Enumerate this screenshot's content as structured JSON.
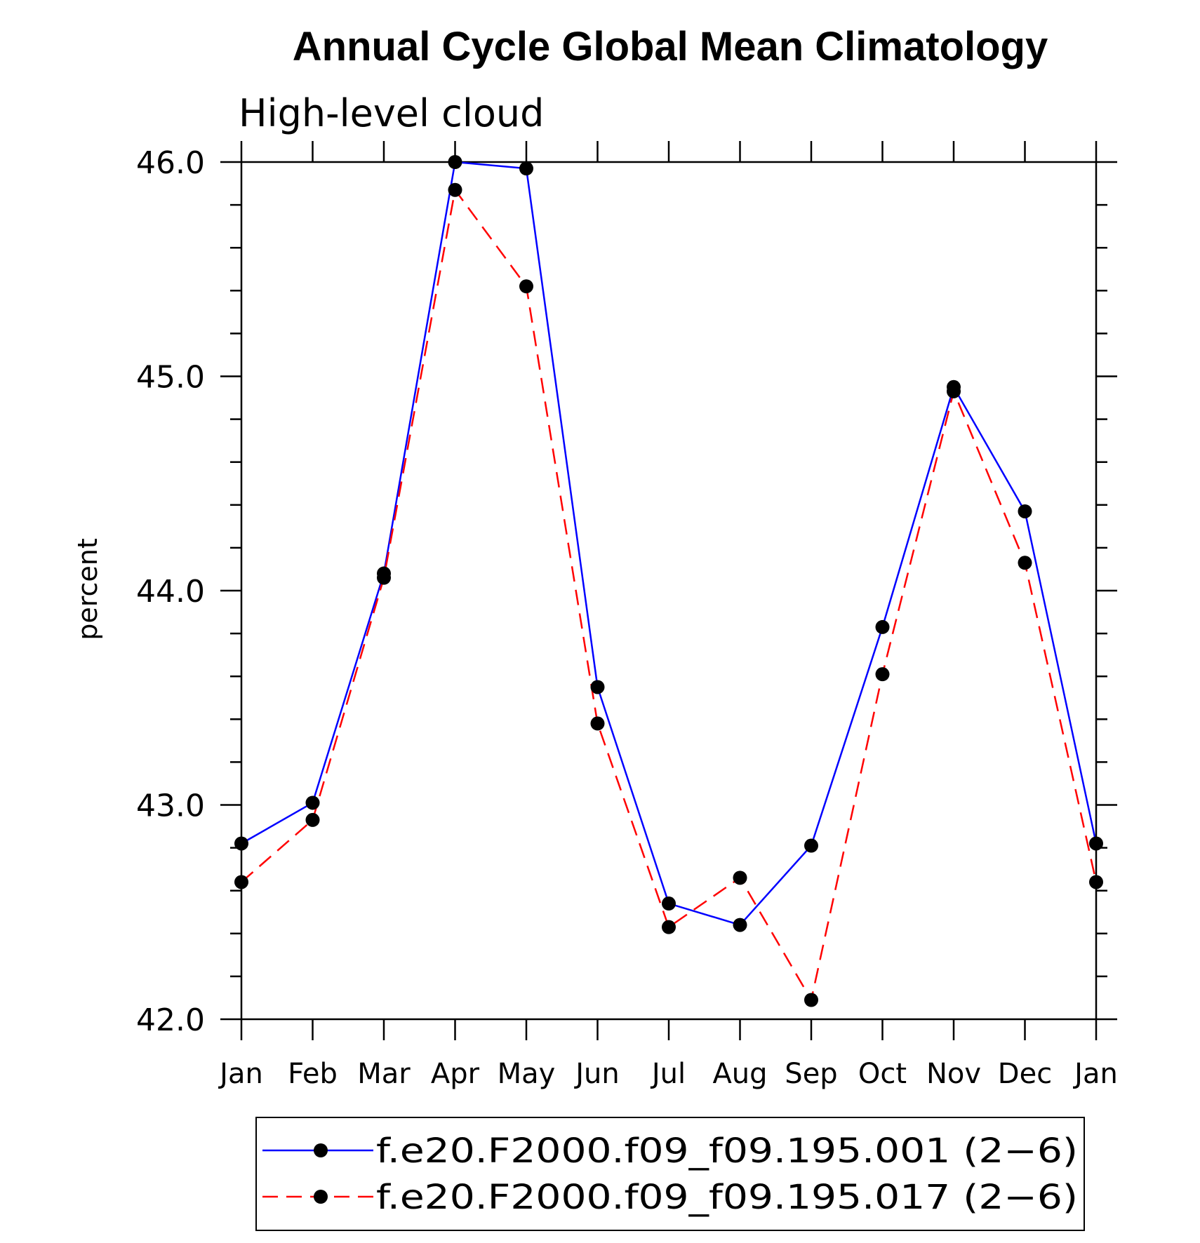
{
  "chart_data": {
    "type": "line",
    "title": "Annual Cycle Global Mean Climatology",
    "subtitle": "High-level cloud",
    "xlabel": "",
    "ylabel": "percent",
    "categories": [
      "Jan",
      "Feb",
      "Mar",
      "Apr",
      "May",
      "Jun",
      "Jul",
      "Aug",
      "Sep",
      "Oct",
      "Nov",
      "Dec",
      "Jan"
    ],
    "ylim": [
      42.0,
      46.0
    ],
    "yticks": [
      "42.0",
      "43.0",
      "44.0",
      "45.0",
      "46.0"
    ],
    "grid": false,
    "legend_position": "bottom",
    "series": [
      {
        "name": "f.e20.F2000.f09_f09.195.001 (2−6)",
        "color": "#0000ff",
        "line_style": "solid",
        "marker": "filled-circle",
        "values": [
          42.82,
          43.01,
          44.08,
          46.0,
          45.97,
          43.55,
          42.54,
          42.44,
          42.81,
          43.83,
          44.95,
          44.37,
          42.82
        ]
      },
      {
        "name": "f.e20.F2000.f09_f09.195.017 (2−6)",
        "color": "#ff0000",
        "line_style": "dashed",
        "marker": "filled-circle",
        "values": [
          42.64,
          42.93,
          44.06,
          45.87,
          45.42,
          43.38,
          42.43,
          42.66,
          42.09,
          43.61,
          44.93,
          44.13,
          42.64
        ]
      }
    ]
  }
}
